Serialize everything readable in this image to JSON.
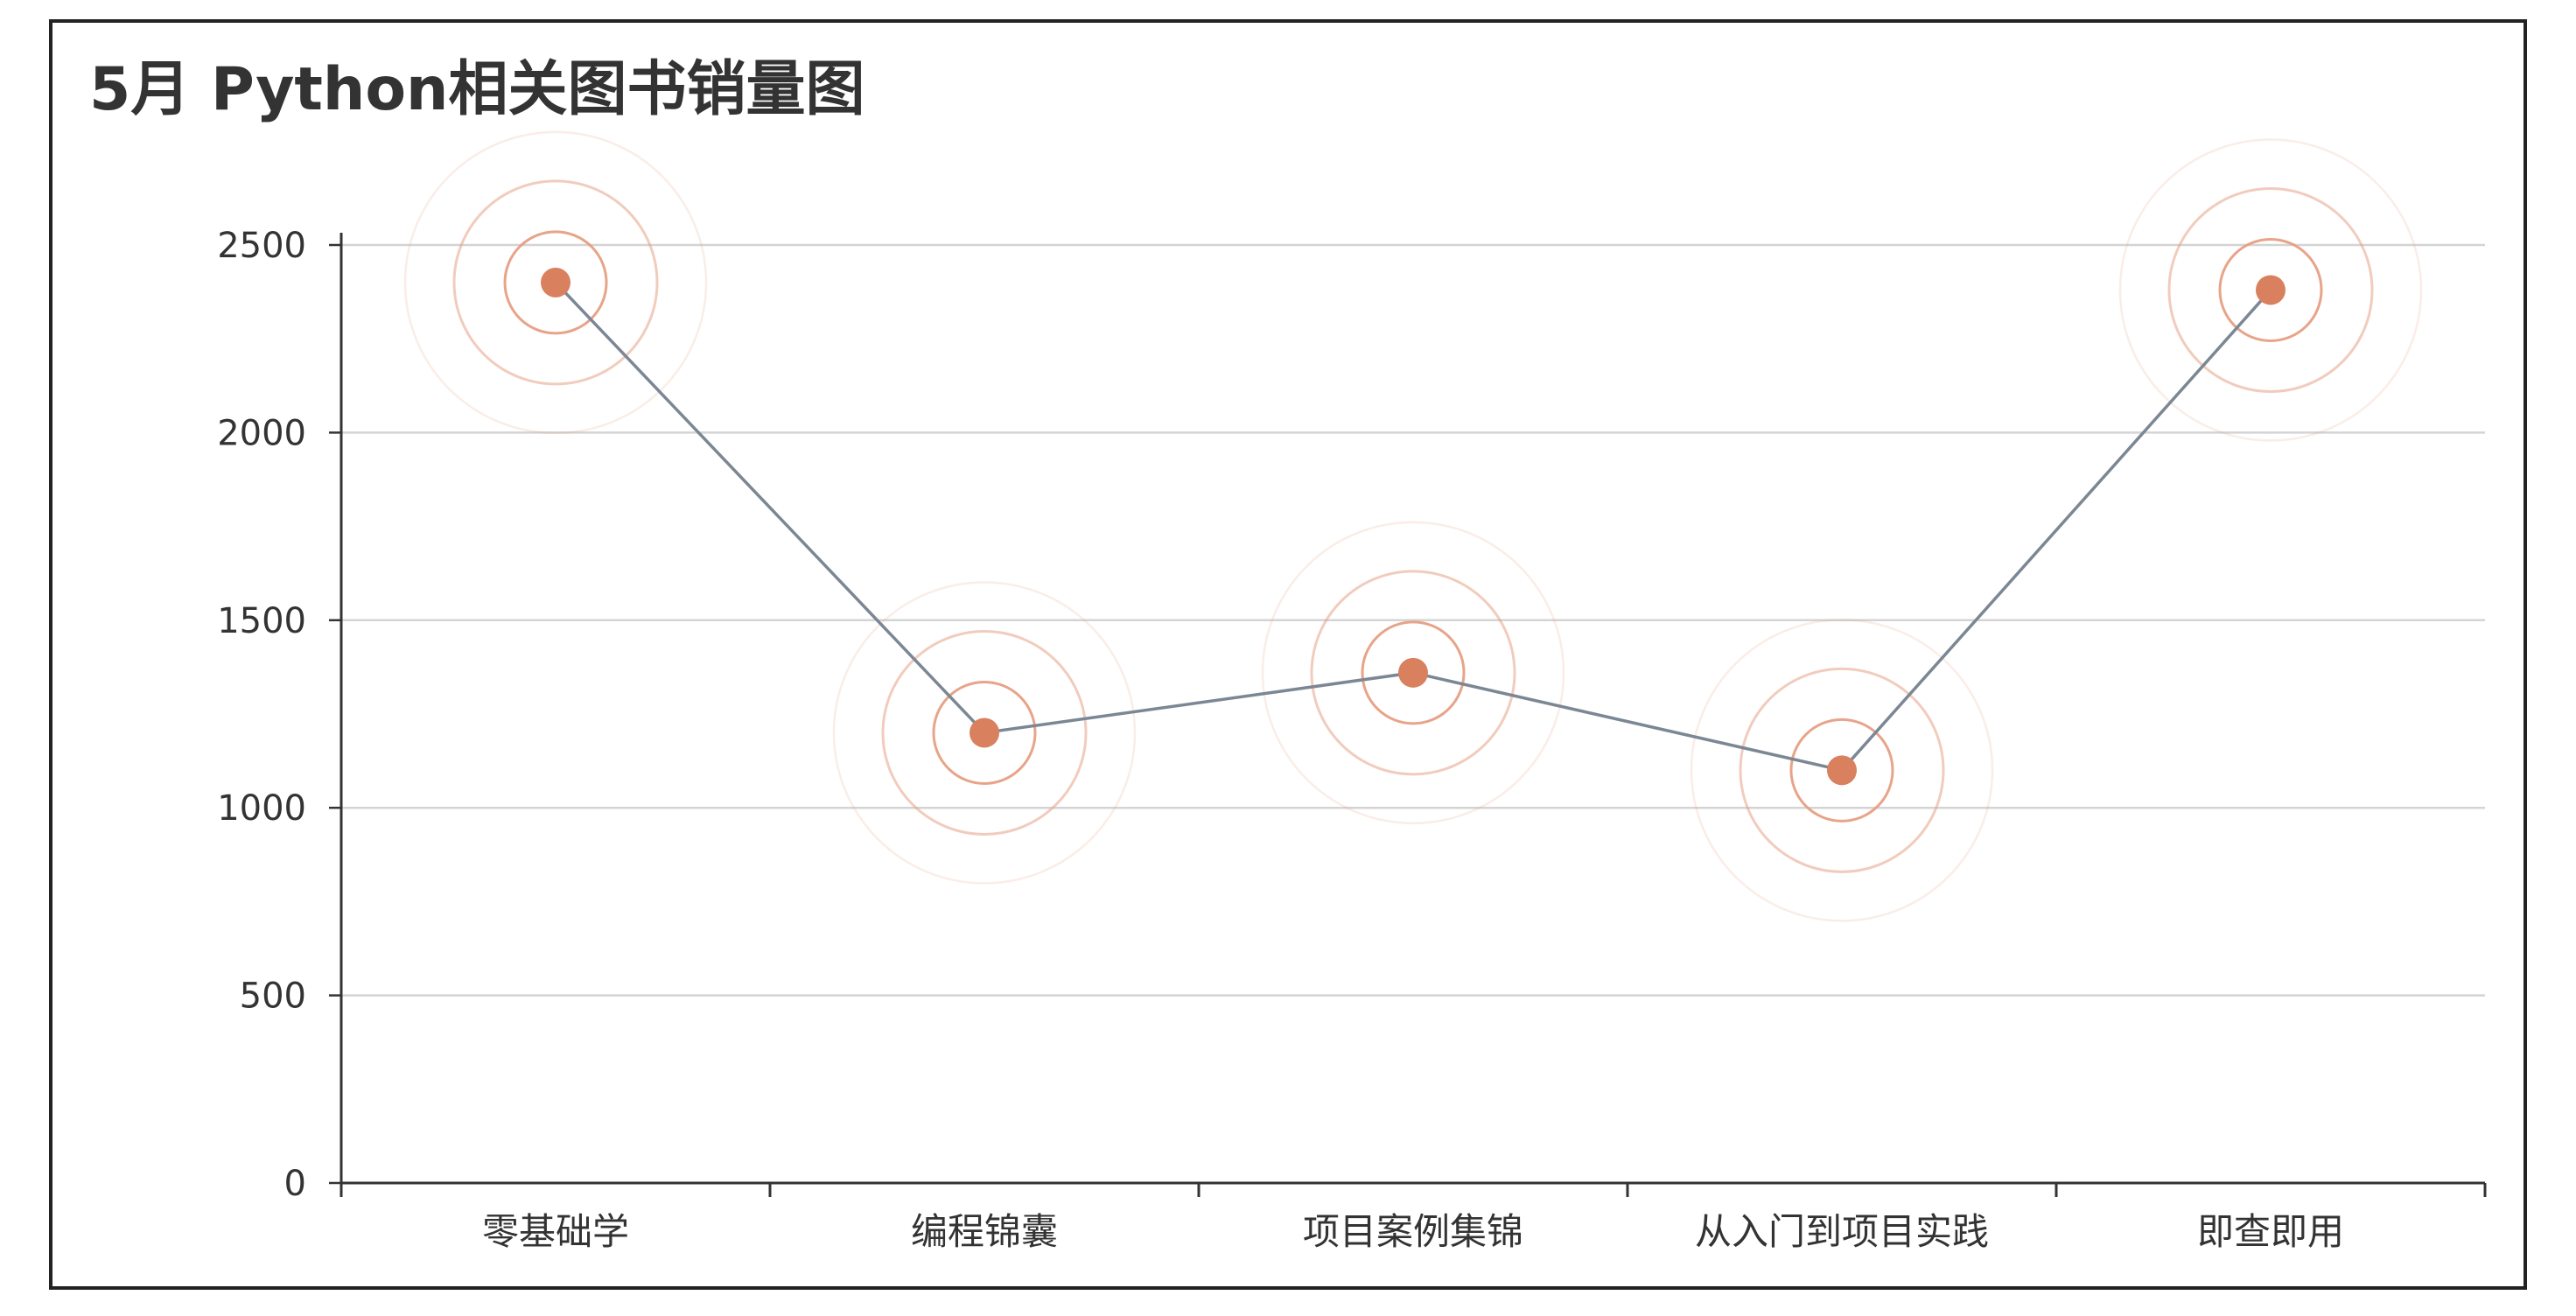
{
  "chart_data": {
    "type": "line",
    "title": "5月 Python相关图书销量图",
    "categories": [
      "零基础学",
      "编程锦囊",
      "项目案例集锦",
      "从入门到项目实践",
      "即查即用"
    ],
    "series": [
      {
        "values": [
          2400,
          1200,
          1360,
          1100,
          2380
        ]
      }
    ],
    "ylim": [
      0,
      2500
    ],
    "yticks": [
      0,
      500,
      1000,
      1500,
      2000,
      2500
    ],
    "grid": true,
    "marker_effect": "ripple",
    "colors": {
      "line": "#7b8794",
      "point": "#d9805f",
      "ripple": "#e49a7c",
      "grid": "#d4d4d4",
      "axis": "#333333",
      "text": "#333333"
    }
  }
}
